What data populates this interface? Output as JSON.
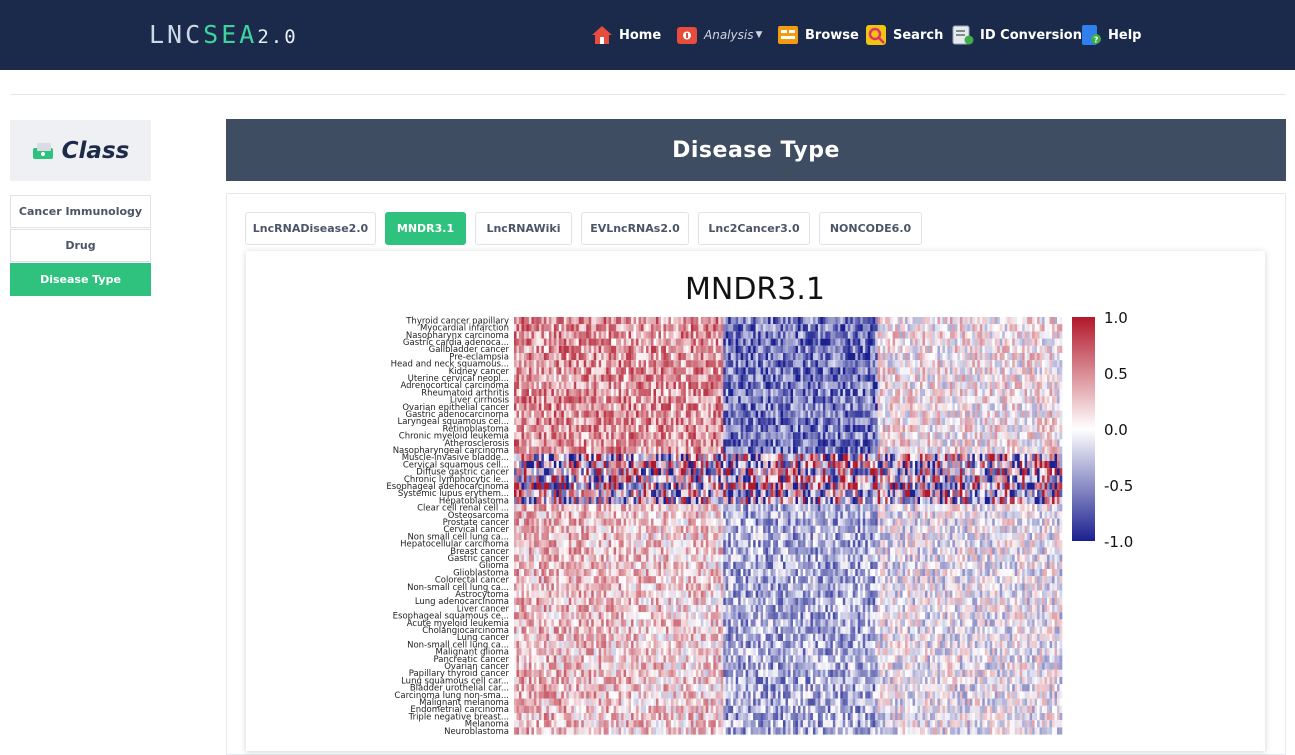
{
  "logo": {
    "part1": "LNC",
    "part2": "SEA",
    "part3": "2.0"
  },
  "nav": [
    {
      "label": "Home",
      "icon": "home-icon",
      "color": "#e74c3c"
    },
    {
      "label": "Analysis",
      "icon": "analysis-icon",
      "color": "#e74c3c"
    },
    {
      "label": "Browse",
      "icon": "browse-icon",
      "color": "#f39c12"
    },
    {
      "label": "Search",
      "icon": "search-icon",
      "color": "#f1c40f"
    },
    {
      "label": "ID Conversion",
      "icon": "id-conversion-icon",
      "color": "#3fae49"
    },
    {
      "label": "Help",
      "icon": "help-icon",
      "color": "#2f80ed"
    }
  ],
  "sidebar": {
    "title": "Class",
    "items": [
      {
        "label": "Cancer Immunology"
      },
      {
        "label": "Drug"
      },
      {
        "label": "Disease Type"
      }
    ],
    "active_index": 2
  },
  "page_title": "Disease Type",
  "tabs": [
    {
      "label": "LncRNADisease2.0"
    },
    {
      "label": "MNDR3.1"
    },
    {
      "label": "LncRNAWiki"
    },
    {
      "label": "EVLncRNAs2.0"
    },
    {
      "label": "Lnc2Cancer3.0"
    },
    {
      "label": "NONCODE6.0"
    }
  ],
  "active_tab": 1,
  "colors": {
    "accent": "#2ec27e",
    "navbar": "#1b2a4a",
    "title_bar": "#3f4d63",
    "heat_high": "#b2182b",
    "heat_mid": "#ffffff",
    "heat_low": "#1b1f8f"
  },
  "chart_data": {
    "type": "heatmap",
    "title": "MNDR3.1",
    "rows": [
      "Thyroid cancer papillary",
      "Myocardial infarction",
      "Nasopharynx carcinoma",
      "Gastric cardia adenoca...",
      "Gallbladder cancer",
      "Pre-eclampsia",
      "Head and neck squamous...",
      "Kidney cancer",
      "Uterine cervical neopl...",
      "Adrenocortical carcinoma",
      "Rheumatoid arthritis",
      "Liver cirrhosis",
      "Ovarian epithelial cancer",
      "Gastric adenocarcinoma",
      "Laryngeal squamous cel...",
      "Retinoblastoma",
      "Chronic myeloid leukemia",
      "Atherosclerosis",
      "Nasopharyngeal carcinoma",
      "Muscle-invasive bladde...",
      "Cervical squamous cell...",
      "Diffuse gastric cancer",
      "Chronic lymphocytic le...",
      "Esophageal adenocarcinoma",
      "Systemic lupus erythem...",
      "Hepatoblastoma",
      "Clear cell renal cell ...",
      "Osteosarcoma",
      "Prostate cancer",
      "Cervical cancer",
      "Non small cell lung ca...",
      "Hepatocellular carcinoma",
      "Breast cancer",
      "Gastric cancer",
      "Glioma",
      "Glioblastoma",
      "Colorectal cancer",
      "Non-small cell lung ca...",
      "Astrocytoma",
      "Lung adenocarcinoma",
      "Liver cancer",
      "Esophageal squamous ce...",
      "Acute myeloid leukemia",
      "Cholangiocarcinoma",
      "Lung cancer",
      "Non-small cell lung ca...",
      "Malignant glioma",
      "Pancreatic cancer",
      "Ovarian cancer",
      "Papillary thyroid cancer",
      "Lung squamous cell car...",
      "Bladder urothelial car...",
      "Carcinoma lung non-sma...",
      "Malignant melanoma",
      "Endometrial carcinoma",
      "Triple negative breast...",
      "Melanoma",
      "Neuroblastoma"
    ],
    "colorbar_ticks": [
      "1.0",
      "0.5",
      "0.0",
      "-0.5",
      "-1.0"
    ],
    "colorbar_range": [
      -1.0,
      1.0
    ],
    "pattern_description": "left columns mostly positive (red), middle block strongly negative (blue), right area mixed"
  }
}
